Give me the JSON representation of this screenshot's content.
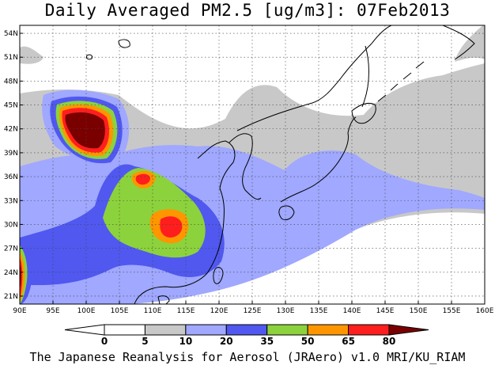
{
  "title": "Daily Averaged PM2.5 [ug/m3]: 07Feb2013",
  "footer": "The Japanese Reanalysis for Aerosol (JRAero) v1.0 MRI/KU_RIAM",
  "map": {
    "lon_range": [
      90,
      160
    ],
    "lat_range": [
      20,
      55
    ],
    "lon_ticks": [
      "90E",
      "95E",
      "100E",
      "105E",
      "110E",
      "115E",
      "120E",
      "125E",
      "130E",
      "135E",
      "140E",
      "145E",
      "150E",
      "155E",
      "160E"
    ],
    "lat_ticks": [
      "54N",
      "51N",
      "48N",
      "45N",
      "42N",
      "39N",
      "36N",
      "33N",
      "30N",
      "27N",
      "24N",
      "21N"
    ],
    "grid": true
  },
  "colorbar": {
    "labels": [
      "0",
      "5",
      "10",
      "20",
      "35",
      "50",
      "65",
      "80"
    ],
    "colors": [
      "#ffffff",
      "#ffffff",
      "#c8c8c8",
      "#a0a8ff",
      "#5058f0",
      "#8cd23c",
      "#ff9600",
      "#ff1e1e",
      "#7a0000"
    ]
  }
}
